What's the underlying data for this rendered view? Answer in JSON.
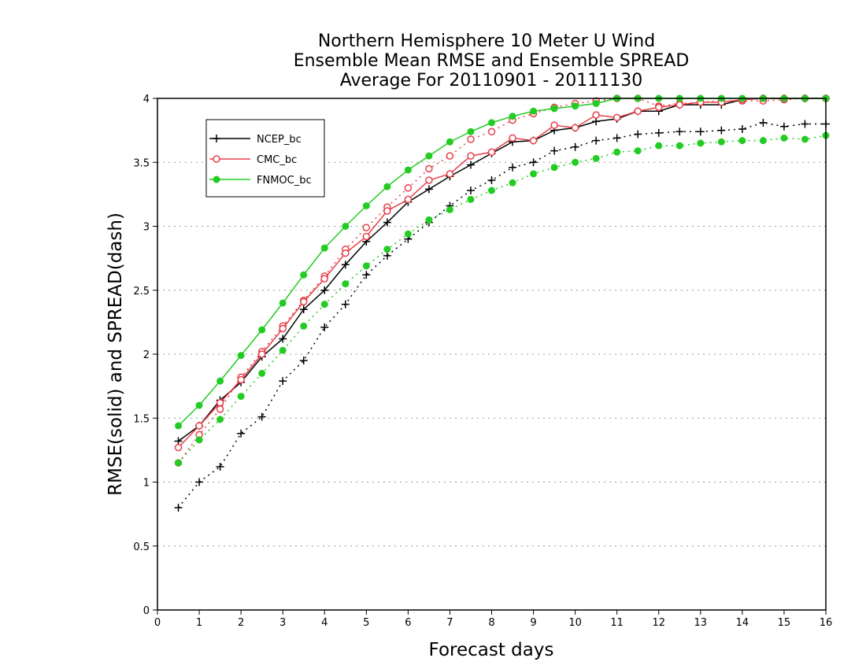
{
  "chart_data": {
    "type": "line",
    "title_lines": [
      "Northern Hemisphere 10 Meter U Wind",
      "Ensemble Mean RMSE and Ensemble SPREAD",
      "Average For 20110901 - 20111130"
    ],
    "xlabel": "Forecast days",
    "ylabel": "RMSE(solid) and SPREAD(dash)",
    "xlim": [
      0,
      16
    ],
    "ylim": [
      0,
      4
    ],
    "x_ticks": [
      "0",
      "1",
      "2",
      "3",
      "4",
      "5",
      "6",
      "7",
      "8",
      "9",
      "10",
      "11",
      "12",
      "13",
      "14",
      "15",
      "16"
    ],
    "y_ticks": [
      "0",
      "0.5",
      "1",
      "1.5",
      "2",
      "2.5",
      "3",
      "3.5",
      "4"
    ],
    "grid": "horizontal dotted",
    "legend_position": "top-left",
    "x": [
      0.5,
      1,
      1.5,
      2,
      2.5,
      3,
      3.5,
      4,
      4.5,
      5,
      5.5,
      6,
      6.5,
      7,
      7.5,
      8,
      8.5,
      9,
      9.5,
      10,
      10.5,
      11,
      11.5,
      12,
      12.5,
      13,
      13.5,
      14,
      14.5,
      15,
      15.5,
      16
    ],
    "series": [
      {
        "name": "NCEP_bc",
        "color": "#000000",
        "marker": "plus",
        "rmse": [
          1.32,
          1.44,
          1.64,
          1.78,
          1.98,
          2.12,
          2.35,
          2.5,
          2.7,
          2.88,
          3.03,
          3.19,
          3.29,
          3.39,
          3.48,
          3.57,
          3.66,
          3.67,
          3.75,
          3.77,
          3.82,
          3.84,
          3.9,
          3.9,
          3.95,
          3.95,
          3.95,
          3.99,
          4.0,
          4.0,
          4.0,
          4.0
        ],
        "spread": [
          0.8,
          1.0,
          1.12,
          1.38,
          1.51,
          1.79,
          1.95,
          2.21,
          2.39,
          2.62,
          2.77,
          2.9,
          3.03,
          3.16,
          3.28,
          3.36,
          3.46,
          3.5,
          3.59,
          3.62,
          3.67,
          3.69,
          3.72,
          3.73,
          3.74,
          3.74,
          3.75,
          3.76,
          3.81,
          3.78,
          3.8,
          3.8
        ]
      },
      {
        "name": "CMC_bc",
        "color": "#e8404a",
        "marker": "circle",
        "rmse": [
          1.27,
          1.44,
          1.62,
          1.8,
          2.0,
          2.2,
          2.41,
          2.59,
          2.79,
          2.92,
          3.12,
          3.21,
          3.36,
          3.41,
          3.55,
          3.58,
          3.69,
          3.67,
          3.79,
          3.77,
          3.87,
          3.85,
          3.9,
          3.93,
          3.95,
          3.97,
          3.97,
          3.99,
          4.0,
          4.0,
          4.0,
          4.0
        ],
        "spread": [
          1.15,
          1.37,
          1.57,
          1.82,
          2.02,
          2.22,
          2.42,
          2.61,
          2.82,
          2.99,
          3.15,
          3.3,
          3.45,
          3.55,
          3.68,
          3.74,
          3.83,
          3.88,
          3.93,
          3.96,
          3.98,
          4.0,
          4.0,
          3.94,
          3.96,
          3.97,
          3.98,
          3.98,
          3.98,
          3.99,
          4.0,
          4.0
        ]
      },
      {
        "name": "FNMOC_bc",
        "color": "#22cc22",
        "marker": "filled-circle",
        "rmse": [
          1.44,
          1.6,
          1.79,
          1.99,
          2.19,
          2.4,
          2.62,
          2.83,
          3.0,
          3.16,
          3.31,
          3.44,
          3.55,
          3.66,
          3.74,
          3.81,
          3.86,
          3.9,
          3.92,
          3.94,
          3.96,
          4.0,
          4.0,
          4.0,
          4.0,
          4.0,
          4.0,
          4.0,
          4.0,
          4.0,
          4.0,
          4.0
        ],
        "spread": [
          1.15,
          1.33,
          1.49,
          1.67,
          1.85,
          2.03,
          2.22,
          2.39,
          2.55,
          2.69,
          2.82,
          2.94,
          3.05,
          3.13,
          3.21,
          3.28,
          3.34,
          3.41,
          3.46,
          3.5,
          3.53,
          3.58,
          3.59,
          3.63,
          3.63,
          3.65,
          3.66,
          3.67,
          3.67,
          3.69,
          3.68,
          3.71
        ]
      }
    ]
  }
}
